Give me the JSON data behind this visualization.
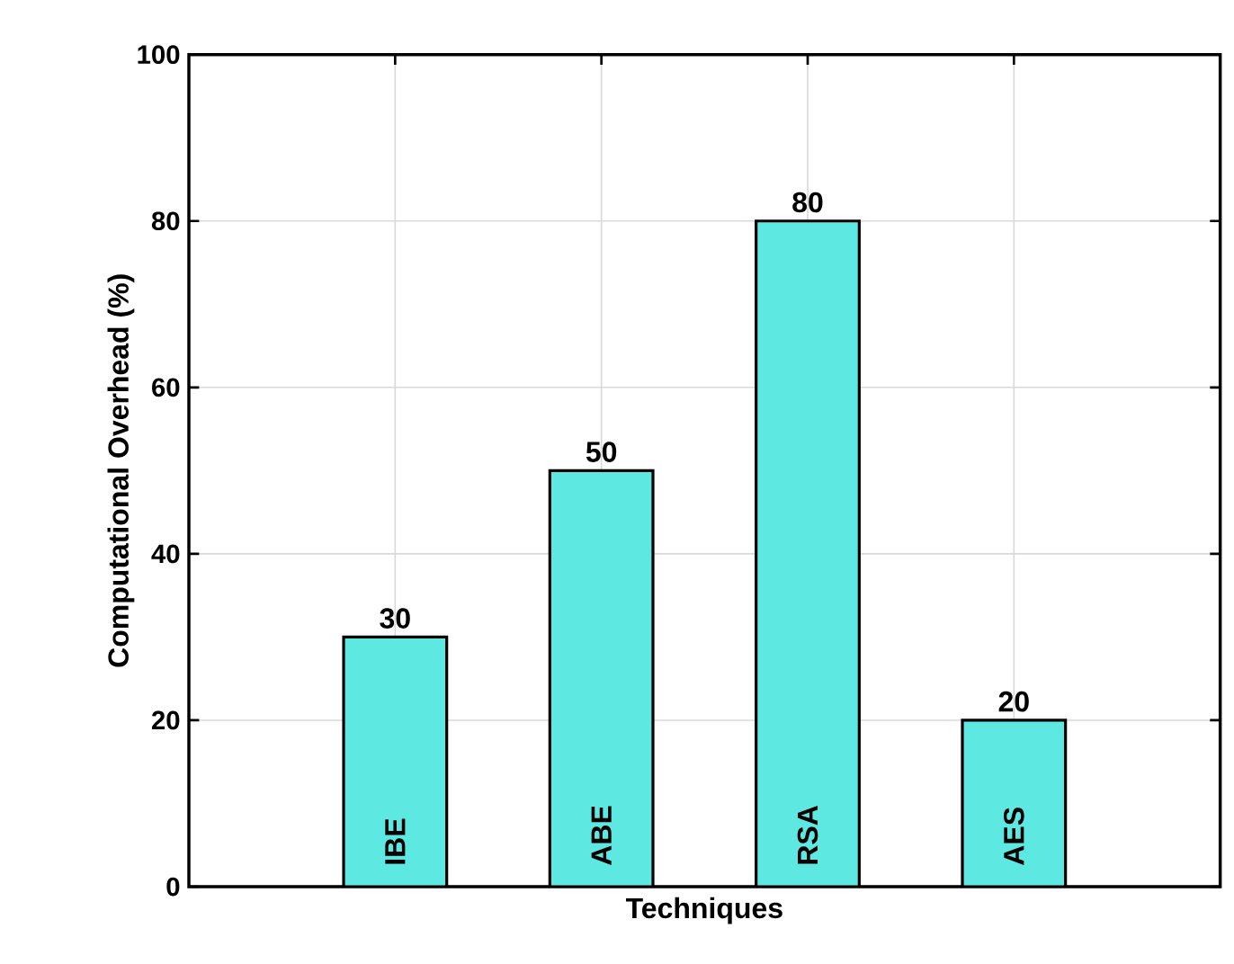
{
  "chart_data": {
    "type": "bar",
    "xlabel": "Techniques",
    "ylabel": "Computational Overhead (%)",
    "categories": [
      "IBE",
      "ABE",
      "RSA",
      "AES"
    ],
    "values": [
      30,
      50,
      80,
      20
    ],
    "color": "#5ee8e2",
    "ylim": [
      0,
      100
    ],
    "yticks": [
      0,
      20,
      40,
      60,
      80,
      100
    ],
    "grid": true,
    "data_labels": true
  }
}
